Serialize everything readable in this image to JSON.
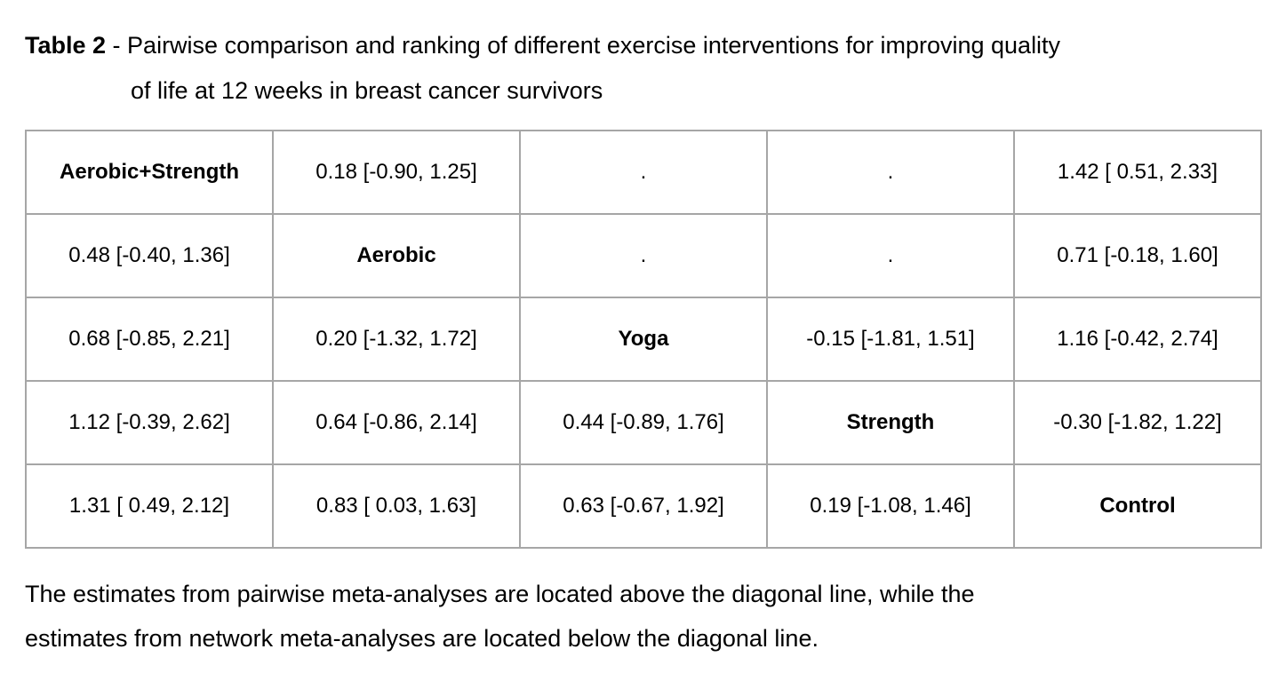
{
  "title": {
    "bold": "Table 2",
    "rest": " - Pairwise comparison and ranking of different exercise interventions for improving quality",
    "line2": "of life at 12 weeks in breast cancer survivors"
  },
  "colors": {
    "border": "#a6a6a6",
    "text": "#000000",
    "background": "#ffffff"
  },
  "table": {
    "diagonal_order": [
      "Aerobic+Strength",
      "Aerobic",
      "Yoga",
      "Strength",
      "Control"
    ],
    "rows": [
      [
        {
          "text": "Aerobic+Strength",
          "diagonal": true
        },
        {
          "text": "0.18 [-0.90, 1.25]",
          "diagonal": false
        },
        {
          "text": ".",
          "diagonal": false
        },
        {
          "text": ".",
          "diagonal": false
        },
        {
          "text": "1.42 [ 0.51, 2.33]",
          "diagonal": false
        }
      ],
      [
        {
          "text": "0.48 [-0.40, 1.36]",
          "diagonal": false
        },
        {
          "text": "Aerobic",
          "diagonal": true
        },
        {
          "text": ".",
          "diagonal": false
        },
        {
          "text": ".",
          "diagonal": false
        },
        {
          "text": "0.71 [-0.18, 1.60]",
          "diagonal": false
        }
      ],
      [
        {
          "text": "0.68 [-0.85, 2.21]",
          "diagonal": false
        },
        {
          "text": "0.20 [-1.32, 1.72]",
          "diagonal": false
        },
        {
          "text": "Yoga",
          "diagonal": true
        },
        {
          "text": "-0.15 [-1.81, 1.51]",
          "diagonal": false
        },
        {
          "text": "1.16 [-0.42, 2.74]",
          "diagonal": false
        }
      ],
      [
        {
          "text": "1.12 [-0.39, 2.62]",
          "diagonal": false
        },
        {
          "text": "0.64 [-0.86, 2.14]",
          "diagonal": false
        },
        {
          "text": "0.44 [-0.89, 1.76]",
          "diagonal": false
        },
        {
          "text": "Strength",
          "diagonal": true
        },
        {
          "text": "-0.30 [-1.82, 1.22]",
          "diagonal": false
        }
      ],
      [
        {
          "text": "1.31 [ 0.49, 2.12]",
          "diagonal": false
        },
        {
          "text": "0.83 [ 0.03, 1.63]",
          "diagonal": false
        },
        {
          "text": "0.63 [-0.67, 1.92]",
          "diagonal": false
        },
        {
          "text": "0.19 [-1.08, 1.46]",
          "diagonal": false
        },
        {
          "text": "Control",
          "diagonal": true
        }
      ]
    ]
  },
  "footnote": {
    "line1": "The estimates from pairwise meta-analyses are located above the diagonal line, while the",
    "line2": "estimates from network meta-analyses are located below the diagonal line."
  }
}
